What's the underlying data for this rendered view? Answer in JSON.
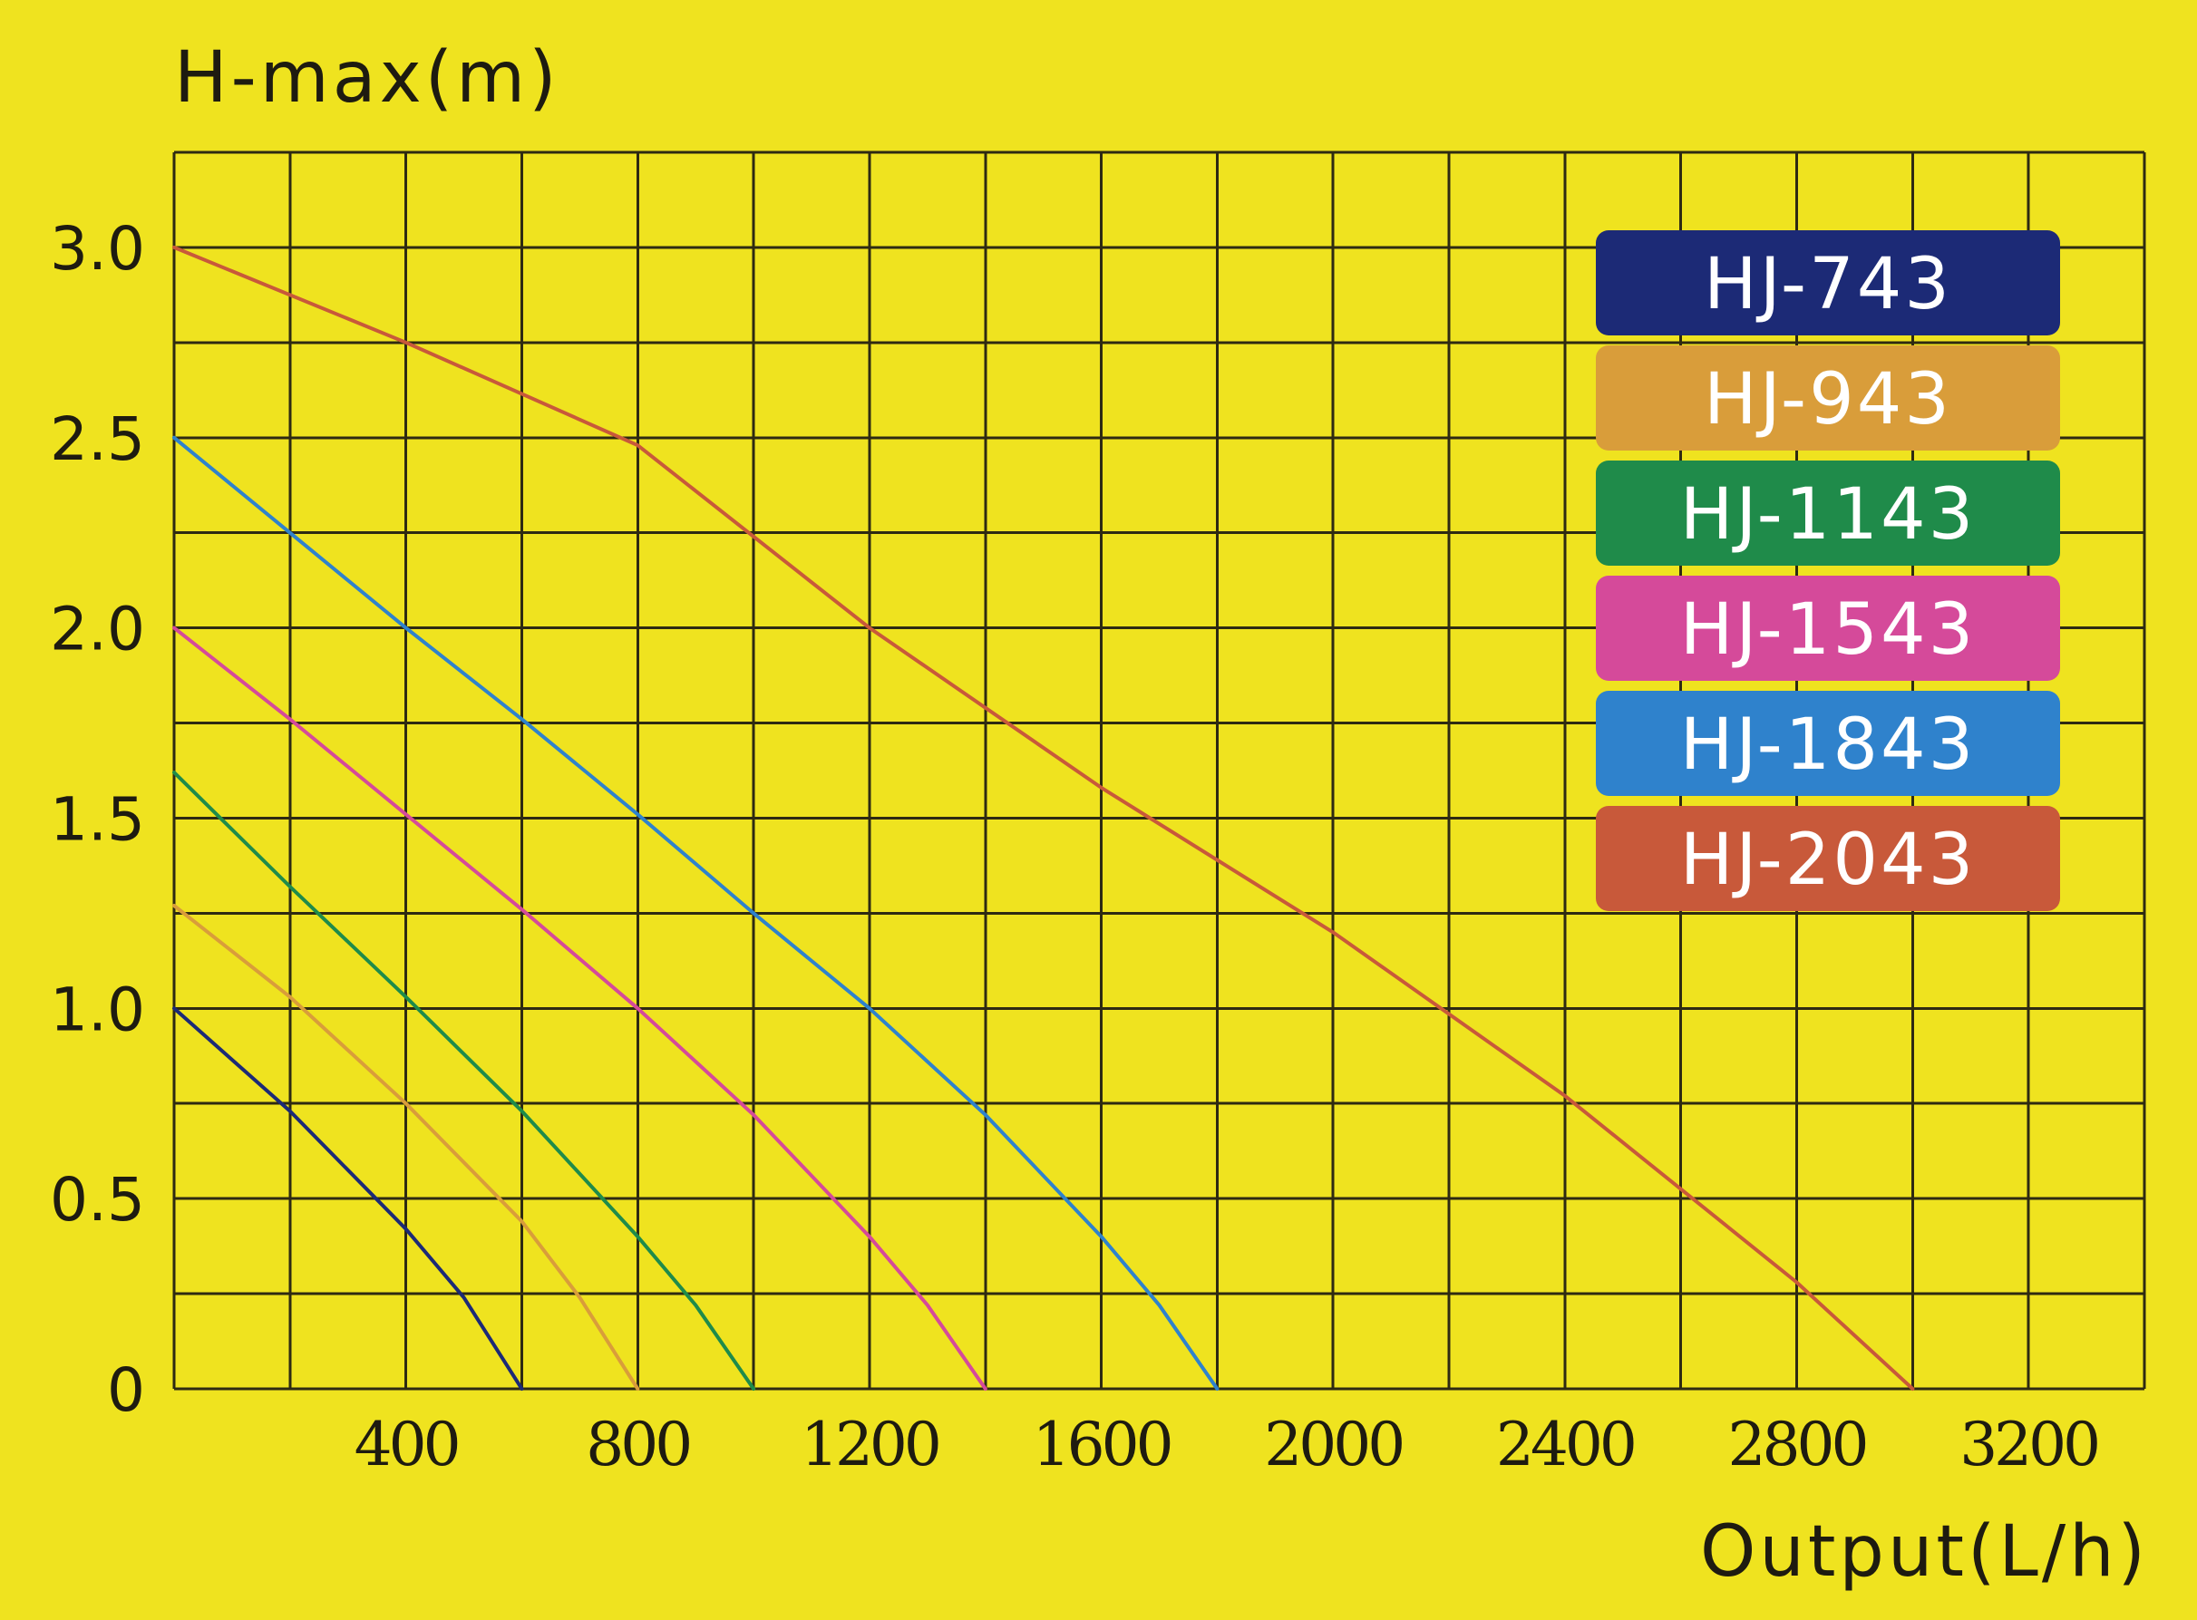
{
  "chart_data": {
    "type": "line",
    "title": "",
    "ylabel": "H-max(m)",
    "xlabel": "Output(L/h)",
    "xlim": [
      0,
      3400
    ],
    "ylim": [
      0,
      3.25
    ],
    "x_ticks": [
      400,
      800,
      1200,
      1600,
      2000,
      2400,
      2800,
      3200
    ],
    "x_tick_labels": [
      "400",
      "800",
      "1200",
      "1600",
      "2000",
      "2400",
      "2800",
      "3200"
    ],
    "y_ticks": [
      0,
      0.5,
      1.0,
      1.5,
      2.0,
      2.5,
      3.0
    ],
    "y_tick_labels": [
      "0",
      "0.5",
      "1.0",
      "1.5",
      "2.0",
      "2.5",
      "3.0"
    ],
    "grid": true,
    "legend_position": "top-right",
    "series": [
      {
        "name": "HJ-743",
        "color": "#1c2a76",
        "points": [
          [
            0,
            1.0
          ],
          [
            200,
            0.73
          ],
          [
            400,
            0.42
          ],
          [
            500,
            0.24
          ],
          [
            600,
            0.0
          ]
        ]
      },
      {
        "name": "HJ-943",
        "color": "#d99d3a",
        "points": [
          [
            0,
            1.27
          ],
          [
            200,
            1.03
          ],
          [
            400,
            0.75
          ],
          [
            600,
            0.44
          ],
          [
            700,
            0.24
          ],
          [
            800,
            0.0
          ]
        ]
      },
      {
        "name": "HJ-1143",
        "color": "#1f8b4a",
        "points": [
          [
            0,
            1.62
          ],
          [
            200,
            1.32
          ],
          [
            400,
            1.03
          ],
          [
            600,
            0.73
          ],
          [
            800,
            0.4
          ],
          [
            900,
            0.22
          ],
          [
            1000,
            0.0
          ]
        ]
      },
      {
        "name": "HJ-1543",
        "color": "#d54a9a",
        "points": [
          [
            0,
            2.0
          ],
          [
            200,
            1.76
          ],
          [
            400,
            1.51
          ],
          [
            600,
            1.26
          ],
          [
            800,
            1.0
          ],
          [
            1000,
            0.72
          ],
          [
            1200,
            0.4
          ],
          [
            1300,
            0.22
          ],
          [
            1400,
            0.0
          ]
        ]
      },
      {
        "name": "HJ-1843",
        "color": "#2f82cc",
        "points": [
          [
            0,
            2.5
          ],
          [
            200,
            2.25
          ],
          [
            400,
            2.0
          ],
          [
            600,
            1.76
          ],
          [
            800,
            1.51
          ],
          [
            1000,
            1.25
          ],
          [
            1200,
            1.0
          ],
          [
            1400,
            0.72
          ],
          [
            1600,
            0.4
          ],
          [
            1700,
            0.22
          ],
          [
            1800,
            0.0
          ]
        ]
      },
      {
        "name": "HJ-2043",
        "color": "#c8593a",
        "points": [
          [
            0,
            3.0
          ],
          [
            400,
            2.75
          ],
          [
            800,
            2.48
          ],
          [
            1200,
            2.0
          ],
          [
            1600,
            1.58
          ],
          [
            2000,
            1.2
          ],
          [
            2400,
            0.77
          ],
          [
            2800,
            0.28
          ],
          [
            3000,
            0.0
          ]
        ]
      }
    ]
  }
}
